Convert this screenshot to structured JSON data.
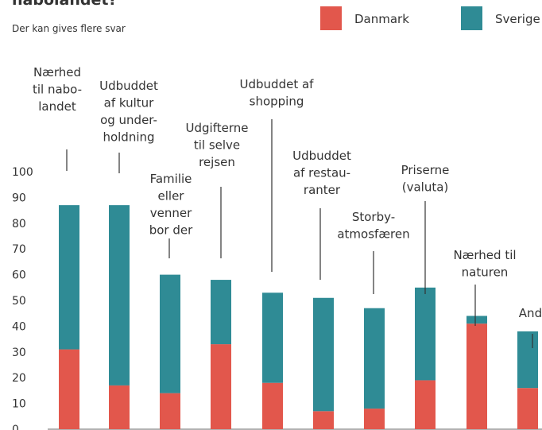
{
  "chart_data": {
    "type": "stacked_bar",
    "title": "nabolandet?",
    "subtitle": "Der kan gives flere svar",
    "categories": [
      [
        "Nærhed",
        "til nabo-",
        "landet"
      ],
      [
        "Udbuddet",
        "af kultur",
        "og under-",
        "holdning"
      ],
      [
        "Familie",
        "eller",
        "venner",
        "bor der"
      ],
      [
        "Udgifterne",
        "til selve",
        "rejsen"
      ],
      [
        "Udbuddet af",
        "shopping"
      ],
      [
        "Udbuddet",
        "af restau-",
        "ranter"
      ],
      [
        "Storby-",
        "atmosfæren"
      ],
      [
        "Priserne",
        "(valuta)"
      ],
      [
        "Nærhed til",
        "naturen"
      ],
      [
        "Andet"
      ]
    ],
    "series": [
      {
        "name": "Danmark",
        "color": "#e2574c",
        "values": [
          31,
          17,
          14,
          33,
          18,
          7,
          8,
          19,
          41,
          16
        ]
      },
      {
        "name": "Sverige",
        "color": "#2f8b95",
        "values": [
          56,
          70,
          46,
          25,
          35,
          44,
          39,
          36,
          3,
          22
        ]
      }
    ],
    "ylim": [
      0,
      100
    ],
    "yticks": [
      0,
      10,
      20,
      30,
      40,
      50,
      60,
      70,
      80,
      90,
      100
    ],
    "grid": false
  }
}
